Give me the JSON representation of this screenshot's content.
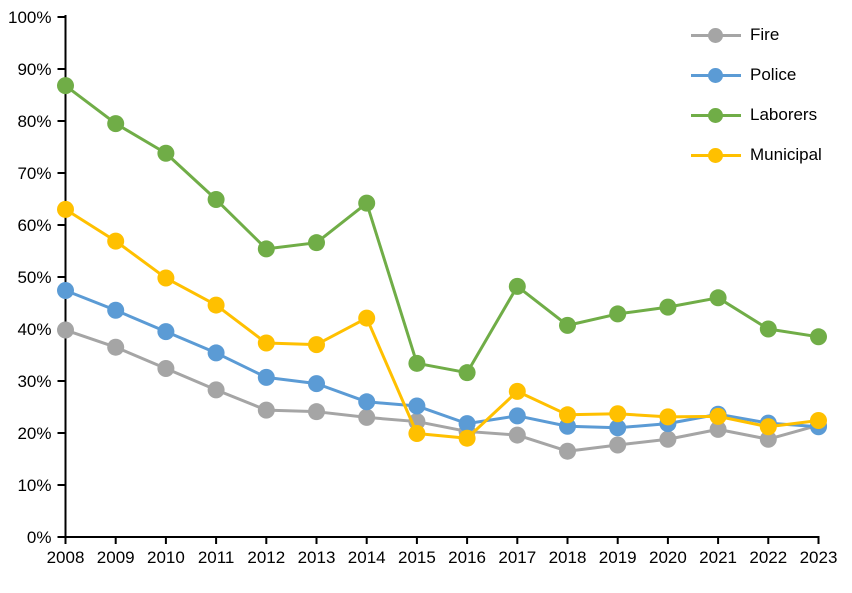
{
  "chart_data": {
    "type": "line",
    "title": "",
    "xlabel": "",
    "ylabel": "",
    "categories": [
      "2008",
      "2009",
      "2010",
      "2011",
      "2012",
      "2013",
      "2014",
      "2015",
      "2016",
      "2017",
      "2018",
      "2019",
      "2020",
      "2021",
      "2022",
      "2023"
    ],
    "series": [
      {
        "name": "Fire",
        "color": "#A5A5A5",
        "values": [
          39.8,
          36.5,
          32.4,
          28.3,
          24.4,
          24.1,
          23.0,
          22.2,
          20.3,
          19.6,
          16.5,
          17.7,
          18.8,
          20.7,
          18.8,
          21.5
        ]
      },
      {
        "name": "Police",
        "color": "#5B9BD5",
        "values": [
          47.4,
          43.6,
          39.5,
          35.4,
          30.7,
          29.5,
          26.0,
          25.2,
          21.8,
          23.3,
          21.3,
          21.0,
          21.8,
          23.6,
          21.9,
          21.2
        ]
      },
      {
        "name": "Laborers",
        "color": "#70AD47",
        "values": [
          86.8,
          79.5,
          73.8,
          64.9,
          55.4,
          56.6,
          64.2,
          33.4,
          31.6,
          48.2,
          40.7,
          42.9,
          44.2,
          46.0,
          40.0,
          38.5
        ]
      },
      {
        "name": "Municipal",
        "color": "#FFC000",
        "values": [
          63.0,
          56.9,
          49.8,
          44.6,
          37.3,
          37.0,
          42.1,
          19.9,
          19.0,
          28.0,
          23.5,
          23.7,
          23.1,
          23.2,
          21.2,
          22.4
        ]
      }
    ],
    "ylim": [
      0,
      100
    ],
    "ytick_step": 10,
    "ytick_labels": [
      "0%",
      "10%",
      "20%",
      "30%",
      "40%",
      "50%",
      "60%",
      "70%",
      "80%",
      "90%",
      "100%"
    ],
    "grid": false,
    "legend_position": "top-right",
    "axis_color": "#000000",
    "background": "#FFFFFF"
  }
}
